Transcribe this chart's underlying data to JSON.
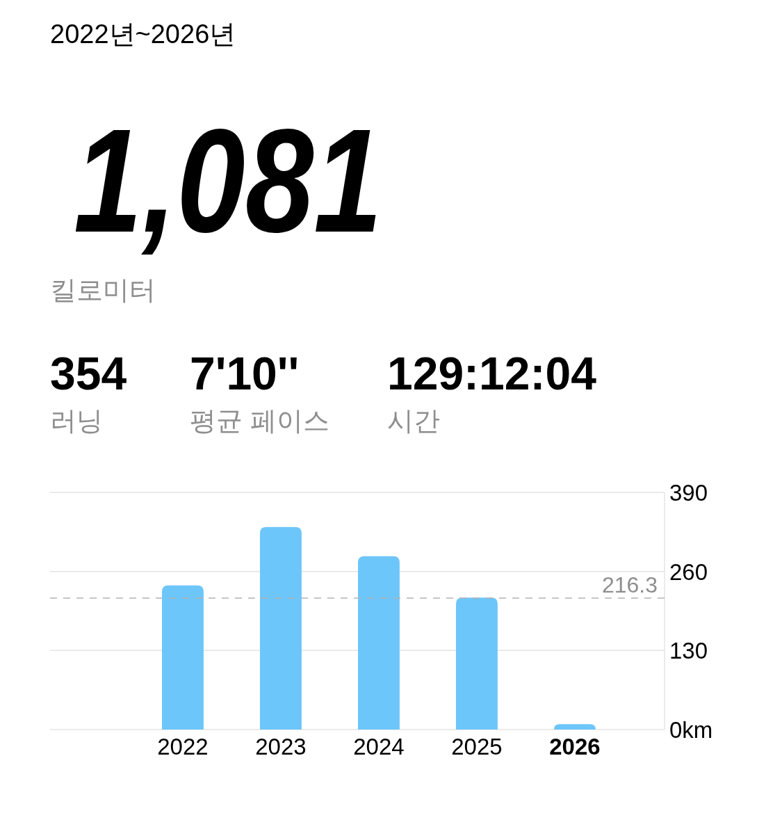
{
  "chart_data": {
    "type": "bar",
    "title": "2022년~2026년",
    "annotations": [
      "1,081",
      "킬로미터",
      "354",
      "러닝",
      "7'10''",
      "평균 페이스",
      "129:12:04",
      "시간"
    ],
    "categories": [
      "2022",
      "2023",
      "2024",
      "2025",
      "2026"
    ],
    "values": [
      237,
      333,
      285,
      217,
      9
    ],
    "color": "#6dc6fa",
    "ylim": [
      0,
      390
    ],
    "yticks": [
      {
        "value": 0,
        "label": "0km"
      },
      130,
      260,
      390
    ],
    "grid": "y",
    "ref_lines": [
      {
        "axis": "y",
        "value": 216.3,
        "label": "216.3",
        "color": "#b3b3b3",
        "line_style": "dashed"
      }
    ]
  }
}
